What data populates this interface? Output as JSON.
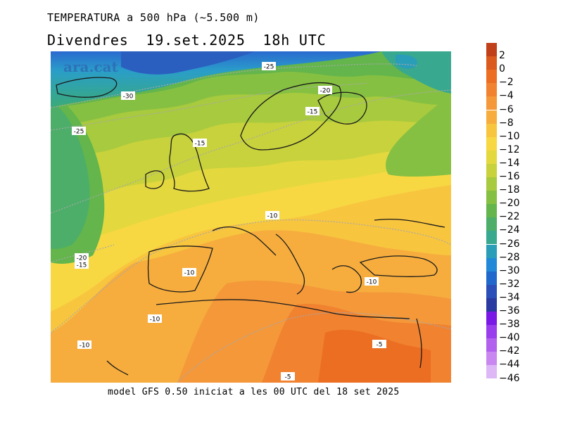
{
  "header": {
    "title": "TEMPERATURA a 500 hPa (~5.500 m)",
    "date_day": "Divendres",
    "date_value": "19.set.2025",
    "date_time": "18h UTC"
  },
  "map": {
    "watermark": "ara.cat",
    "contour_labels": [
      "-25",
      "-20",
      "-30",
      "-15",
      "-25",
      "-15",
      "-10",
      "-20",
      "-15",
      "-10",
      "-10",
      "-10",
      "-10",
      "-5",
      "-5"
    ]
  },
  "legend": {
    "labels": [
      "2",
      "0",
      "−2",
      "−4",
      "−6",
      "−8",
      "−10",
      "−12",
      "−14",
      "−16",
      "−18",
      "−20",
      "−22",
      "−24",
      "−26",
      "−28",
      "−30",
      "−32",
      "−34",
      "−36",
      "−38",
      "−40",
      "−42",
      "−44",
      "−46"
    ],
    "colors": [
      "#c0401a",
      "#db5a1e",
      "#ec6e23",
      "#f08230",
      "#f4983a",
      "#f6ad3e",
      "#f8c53f",
      "#f7d842",
      "#e4d83f",
      "#c8d23c",
      "#a8ca3e",
      "#86c042",
      "#63b54c",
      "#4cae68",
      "#38a88f",
      "#2a9eb8",
      "#2289d8",
      "#2168cc",
      "#2a4fb8",
      "#2a3aa0",
      "#7a19e6",
      "#9a3ded",
      "#b261ee",
      "#c888f0",
      "#deb8f6"
    ]
  },
  "footer": {
    "text": "model GFS 0.50 iniciat a les 00 UTC del 18 set 2025"
  }
}
